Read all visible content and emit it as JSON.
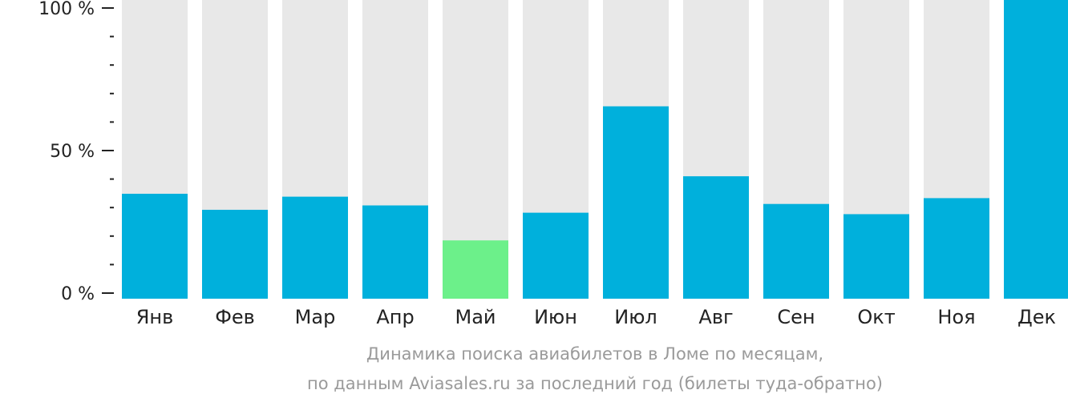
{
  "chart_data": {
    "type": "bar",
    "categories": [
      "Янв",
      "Фев",
      "Мар",
      "Апр",
      "Май",
      "Июн",
      "Июл",
      "Авг",
      "Сен",
      "Окт",
      "Ноя",
      "Дек"
    ],
    "values": [
      36,
      30.5,
      35,
      32,
      20,
      29.5,
      66,
      42,
      32.5,
      29,
      34.5,
      104
    ],
    "highlight_category": "Май",
    "ylim": [
      0,
      104
    ],
    "yticks": [
      {
        "value": 0,
        "label": "0 %"
      },
      {
        "value": 50,
        "label": "50 %"
      },
      {
        "value": 100,
        "label": "100 %"
      }
    ],
    "minor_tick_step": 10,
    "grid": false,
    "colors": {
      "bar": "#00b0dc",
      "highlight": "#6cf08a",
      "background_bar": "#e8e8e8",
      "axis": "#222222",
      "caption": "#9a9a9a"
    },
    "caption": [
      "Динамика поиска авиабилетов в Ломе по месяцам,",
      "по данным Aviasales.ru за последний год (билеты туда-обратно)"
    ]
  }
}
